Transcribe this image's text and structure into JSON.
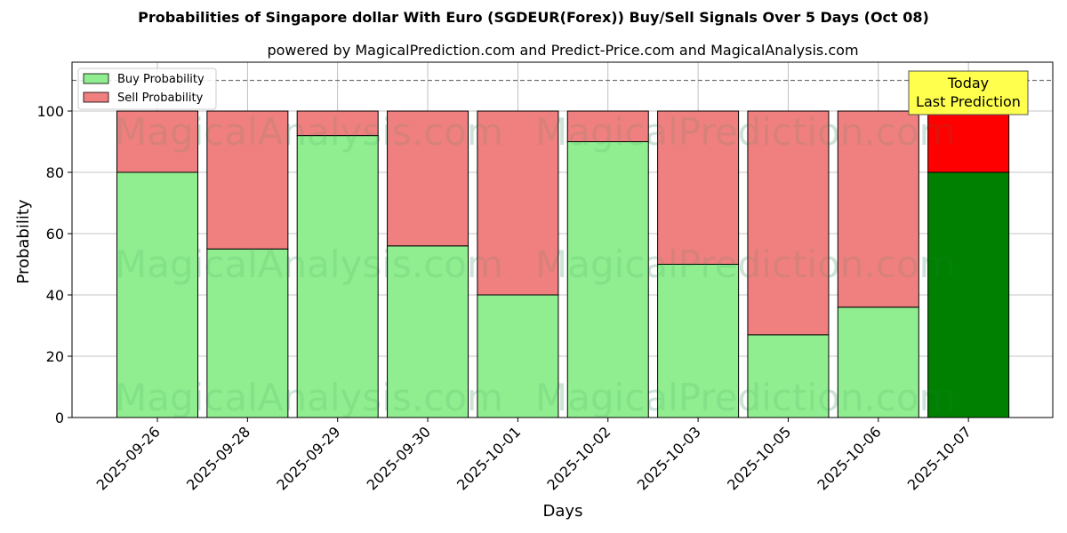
{
  "chart_data": {
    "type": "bar",
    "stacked": true,
    "title": "Probabilities of Singapore dollar With Euro (SGDEUR(Forex)) Buy/Sell Signals Over 5 Days (Oct 08)",
    "subtitle": "powered by MagicalPrediction.com and Predict-Price.com and MagicalAnalysis.com",
    "xlabel": "Days",
    "ylabel": "Probability",
    "ylim": [
      0,
      115
    ],
    "yticks": [
      0,
      20,
      40,
      60,
      80,
      100
    ],
    "grid": true,
    "reference_line": 110,
    "legend_position": "top-left",
    "categories": [
      "2025-09-26",
      "2025-09-28",
      "2025-09-29",
      "2025-09-30",
      "2025-10-01",
      "2025-10-02",
      "2025-10-03",
      "2025-10-05",
      "2025-10-06",
      "2025-10-07"
    ],
    "series": [
      {
        "name": "Buy Probability",
        "values": [
          80,
          55,
          92,
          56,
          40,
          90,
          50,
          27,
          36,
          80
        ],
        "color": "#90ee90",
        "highlight_color": "#008000"
      },
      {
        "name": "Sell Probability",
        "values": [
          20,
          45,
          8,
          44,
          60,
          10,
          50,
          73,
          64,
          20
        ],
        "color": "#f08080",
        "highlight_color": "#ff0000"
      }
    ],
    "highlight_index": 9,
    "annotation": {
      "lines": [
        "Today",
        "Last Prediction"
      ],
      "background": "#ffff4d"
    },
    "watermarks": [
      "MagicalAnalysis.com",
      "MagicalPrediction.com"
    ]
  }
}
